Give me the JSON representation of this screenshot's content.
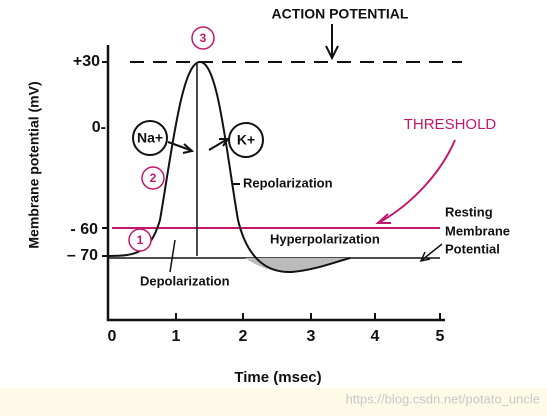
{
  "title": "ACTION POTENTIAL",
  "y_axis": {
    "label": "Membrane potential (mV)",
    "ticks": [
      "+30",
      "0-",
      "- 60",
      "– 70"
    ]
  },
  "x_axis": {
    "label": "Time (msec)",
    "ticks": [
      "0",
      "1",
      "2",
      "3",
      "4",
      "5"
    ]
  },
  "steps": [
    "1",
    "2",
    "3"
  ],
  "ions": [
    "Na+",
    "K+"
  ],
  "annotations": {
    "threshold": "THRESHOLD",
    "repolarization": "Repolarization",
    "hyperpolarization": "Hyperpolarization",
    "depolarization": "Depolarization",
    "resting": [
      "Resting",
      "Membrane",
      "Potential"
    ]
  },
  "watermark": "https://blog.csdn.net/potato_uncle"
}
